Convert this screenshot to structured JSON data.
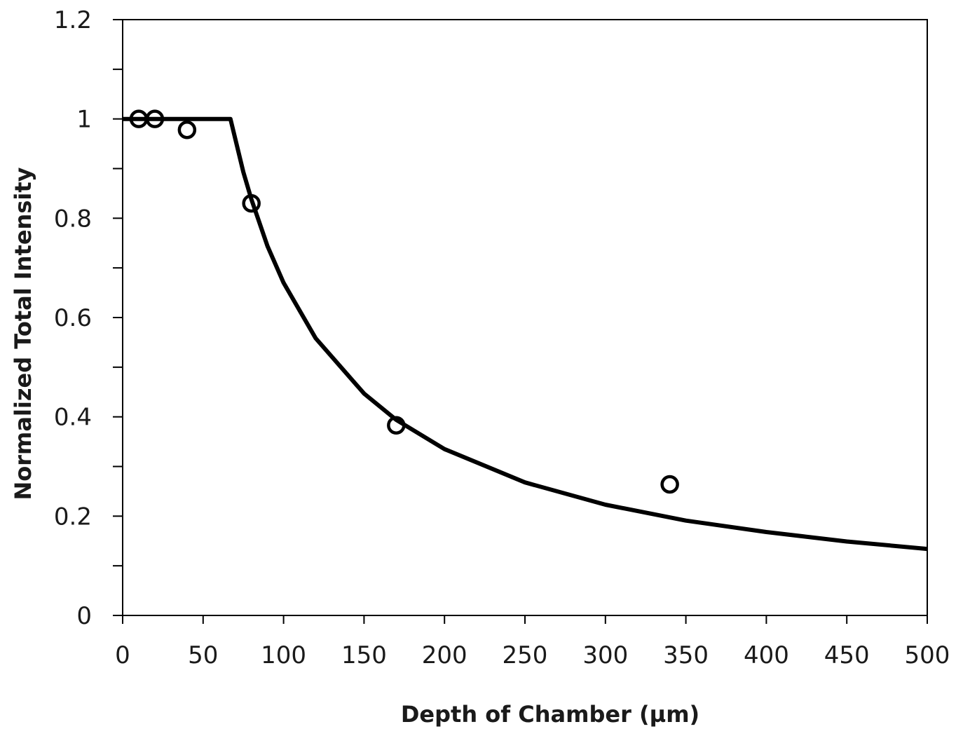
{
  "chart_data": {
    "type": "scatter",
    "title": "",
    "xlabel": "Depth of Chamber (µm)",
    "ylabel": "Normalized Total Intensity",
    "xlim": [
      0,
      500
    ],
    "ylim": [
      0,
      1.2
    ],
    "x_ticks": [
      0,
      50,
      100,
      150,
      200,
      250,
      300,
      350,
      400,
      450,
      500
    ],
    "x_tick_labels": [
      "0",
      "50",
      "100",
      "150",
      "200",
      "250",
      "300",
      "350",
      "400",
      "450",
      "500"
    ],
    "y_ticks": [
      0,
      0.2,
      0.4,
      0.6,
      0.8,
      1.0,
      1.2
    ],
    "y_tick_labels": [
      "0",
      "0.2",
      "0.4",
      "0.6",
      "0.8",
      "1",
      "1.2"
    ],
    "grid": false,
    "legend": "none",
    "series": [
      {
        "kind": "scatter",
        "marker": "open-circle",
        "x": [
          10,
          20,
          40,
          80,
          170,
          340
        ],
        "y": [
          1.0,
          1.0,
          0.978,
          0.83,
          0.383,
          0.264
        ]
      },
      {
        "kind": "line",
        "x": [
          0,
          67,
          75,
          80,
          90,
          100,
          120,
          150,
          170,
          200,
          250,
          300,
          350,
          400,
          450,
          500
        ],
        "y": [
          1.0,
          1.0,
          0.893,
          0.838,
          0.744,
          0.67,
          0.558,
          0.447,
          0.394,
          0.335,
          0.268,
          0.223,
          0.191,
          0.168,
          0.149,
          0.134
        ]
      }
    ],
    "colors": {
      "ink": "#000000",
      "text": "#1a1a1a"
    }
  }
}
